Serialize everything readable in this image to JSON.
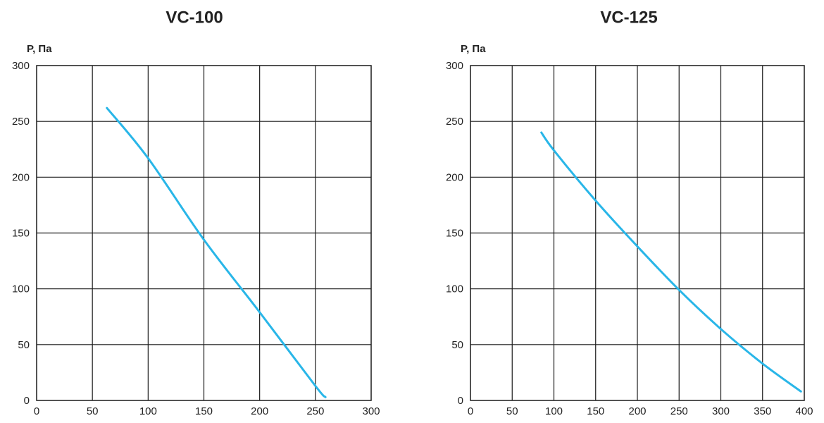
{
  "colors": {
    "series": "#29b6e8",
    "grid": "#1a1a1a",
    "text": "#222222"
  },
  "chart_data": [
    {
      "type": "line",
      "title": "VC-100",
      "ylabel": "P, Па",
      "xlabel": "",
      "xlim": [
        0,
        300
      ],
      "ylim": [
        0,
        300
      ],
      "xticks": [
        0,
        50,
        100,
        150,
        200,
        250,
        300
      ],
      "yticks": [
        0,
        50,
        100,
        150,
        200,
        250,
        300
      ],
      "grid": true,
      "series": [
        {
          "x": [
            63,
            100,
            150,
            200,
            250,
            259
          ],
          "y": [
            262,
            217,
            144,
            79,
            13,
            3
          ]
        }
      ]
    },
    {
      "type": "line",
      "title": "VC-125",
      "ylabel": "P, Па",
      "xlabel": "",
      "xlim": [
        0,
        400
      ],
      "ylim": [
        0,
        300
      ],
      "xticks": [
        0,
        50,
        100,
        150,
        200,
        250,
        300,
        350,
        400
      ],
      "yticks": [
        0,
        50,
        100,
        150,
        200,
        250,
        300
      ],
      "grid": true,
      "series": [
        {
          "x": [
            85,
            100,
            150,
            200,
            250,
            300,
            350,
            396
          ],
          "y": [
            240,
            224,
            179,
            138,
            99,
            64,
            33,
            8
          ]
        }
      ]
    }
  ]
}
